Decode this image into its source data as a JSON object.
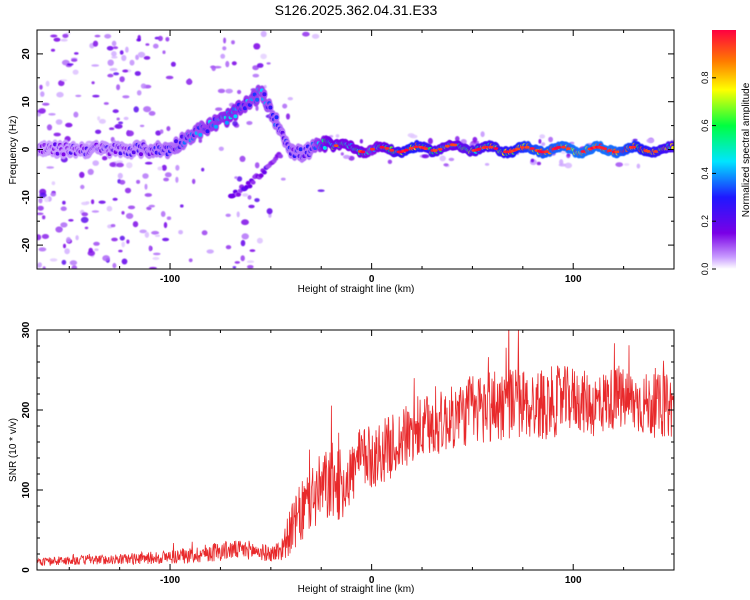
{
  "title": "S126.2025.362.04.31.E33",
  "colors": {
    "frame": "#000000",
    "snr_line": "#e8292b",
    "background": "#ffffff"
  },
  "chart_data": [
    {
      "type": "heatmap",
      "name": "spectrogram",
      "title": "S126.2025.362.04.31.E33",
      "xlabel": "Height of straight line (km)",
      "ylabel": "Frequency (Hz)",
      "xlim": [
        -166,
        150
      ],
      "ylim": [
        -25,
        25
      ],
      "xticks": [
        -100,
        0,
        100
      ],
      "xtick_labels": [
        "-100",
        "0",
        "100"
      ],
      "yticks": [
        -20,
        -10,
        0,
        10,
        20
      ],
      "ytick_labels": [
        "-20",
        "-10",
        "0",
        "10",
        "20"
      ],
      "colorbar": {
        "label": "Normalized spectral amplitude",
        "range": [
          0,
          1
        ],
        "ticks": [
          0.0,
          0.2,
          0.4,
          0.6,
          0.8
        ],
        "tick_labels": [
          "0.0",
          "0.2",
          "0.4",
          "0.6",
          "0.8"
        ],
        "colormap": [
          "#ffffff",
          "#c89bff",
          "#7a00e6",
          "#1f18ff",
          "#00e5ff",
          "#00ff40",
          "#ffff00",
          "#ff7a00",
          "#ff0040"
        ]
      },
      "ridge": {
        "description": "Dominant frequency track vs height",
        "x": [
          -166,
          -140,
          -120,
          -100,
          -90,
          -80,
          -70,
          -60,
          -55,
          -50,
          -45,
          -40,
          -35,
          -30,
          -25,
          -20,
          -15,
          -10,
          -5,
          0,
          20,
          40,
          60,
          80,
          100,
          120,
          150
        ],
        "y": [
          0,
          0,
          0,
          0,
          3,
          5,
          7,
          10,
          12,
          8,
          4,
          0,
          -1,
          0,
          1,
          1,
          0.5,
          0.5,
          0,
          0,
          0,
          0.5,
          0,
          0,
          0,
          0,
          0
        ],
        "amplitude": [
          0.25,
          0.3,
          0.3,
          0.35,
          0.4,
          0.45,
          0.5,
          0.45,
          0.45,
          0.4,
          0.35,
          0.35,
          0.35,
          0.35,
          0.5,
          0.6,
          0.55,
          0.55,
          0.6,
          0.5,
          0.85,
          0.6,
          0.75,
          0.9,
          0.95,
          0.95,
          0.7
        ]
      },
      "descending_branch": {
        "x": [
          -70,
          -60,
          -50,
          -45
        ],
        "y": [
          -10,
          -7,
          -3,
          -1
        ]
      }
    },
    {
      "type": "line",
      "name": "snr",
      "xlabel": "Height of straight line (km)",
      "ylabel": "SNR (10 * v/v)",
      "xlim": [
        -166,
        150
      ],
      "ylim": [
        0,
        300
      ],
      "xticks": [
        -100,
        0,
        100
      ],
      "xtick_labels": [
        "-100",
        "0",
        "100"
      ],
      "yticks": [
        0,
        100,
        200,
        300
      ],
      "ytick_labels": [
        "0",
        "100",
        "200",
        "300"
      ],
      "series": [
        {
          "name": "SNR",
          "x": [
            -166,
            -150,
            -130,
            -110,
            -90,
            -80,
            -70,
            -60,
            -50,
            -45,
            -40,
            -35,
            -30,
            -25,
            -20,
            -15,
            -10,
            -5,
            0,
            10,
            20,
            30,
            40,
            50,
            60,
            70,
            80,
            90,
            100,
            110,
            120,
            130,
            140,
            150
          ],
          "mean": [
            10,
            12,
            13,
            15,
            18,
            22,
            25,
            25,
            20,
            25,
            50,
            70,
            90,
            100,
            110,
            105,
            120,
            140,
            140,
            155,
            170,
            180,
            190,
            200,
            205,
            210,
            205,
            210,
            215,
            205,
            215,
            210,
            205,
            205
          ],
          "spread": [
            5,
            6,
            6,
            8,
            10,
            12,
            12,
            12,
            10,
            15,
            30,
            40,
            45,
            45,
            50,
            45,
            40,
            40,
            40,
            40,
            40,
            40,
            40,
            45,
            50,
            45,
            45,
            45,
            40,
            40,
            40,
            40,
            40,
            40
          ]
        }
      ]
    }
  ]
}
